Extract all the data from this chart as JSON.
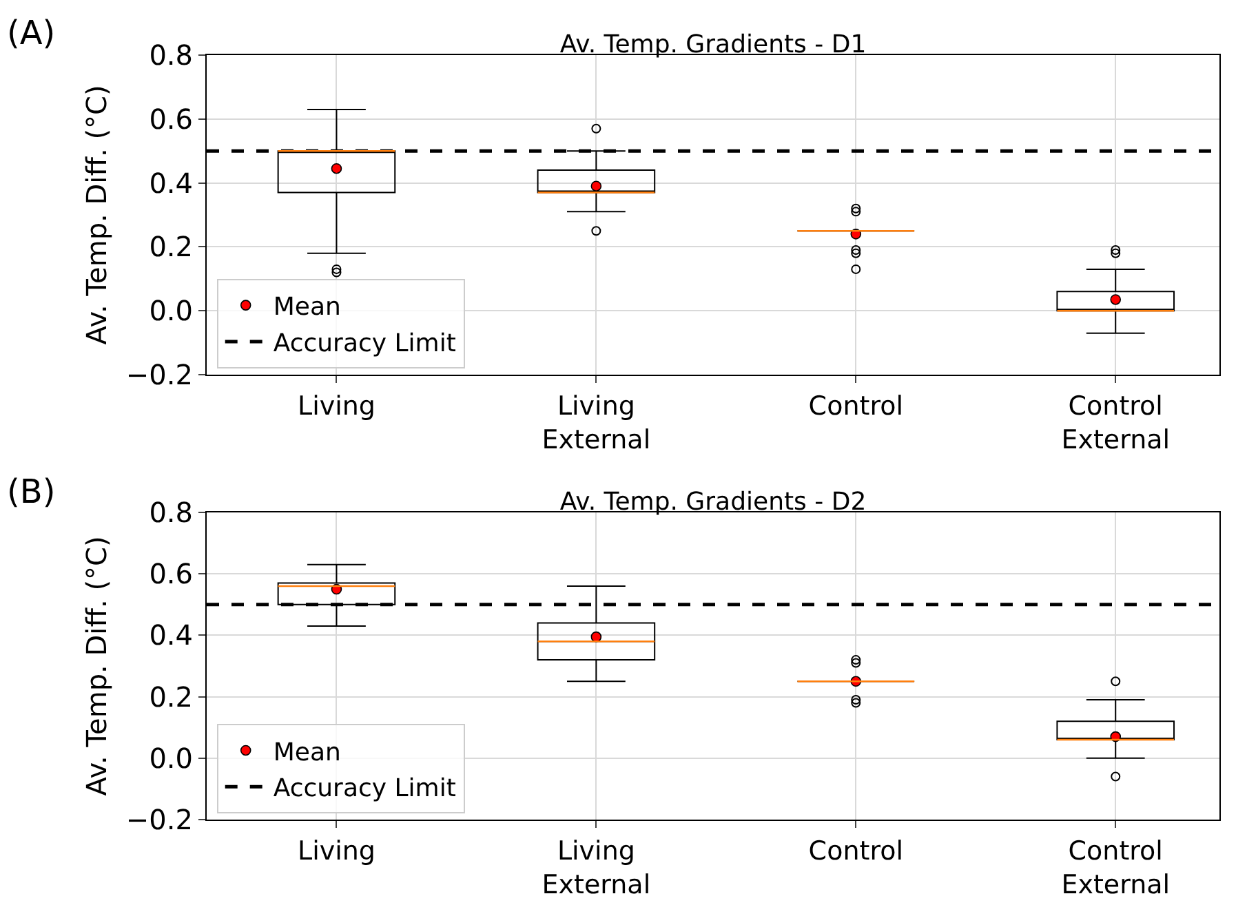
{
  "chart_data": [
    {
      "type": "box",
      "title": "Av. Temp. Gradients - D1",
      "ylabel": "Av. Temp. Diff. (°C)",
      "annotations": [
        "(A)"
      ],
      "categories": [
        "Living",
        "Living External",
        "Control",
        "Control External"
      ],
      "ylim": [
        -0.2,
        0.8
      ],
      "yticks": [
        {
          "value": -0.2,
          "label": "−0.2"
        },
        {
          "value": 0,
          "label": "0.0"
        },
        {
          "value": 0.2,
          "label": "0.2"
        },
        {
          "value": 0.4,
          "label": "0.4"
        },
        {
          "value": 0.6,
          "label": "0.6"
        },
        {
          "value": 0.8,
          "label": "0.8"
        }
      ],
      "grid": true,
      "legend": "bottom left",
      "series": [
        {
          "type": "box",
          "color": "#000000",
          "boxes": [
            {
              "low": 0.18,
              "q1": 0.37,
              "median": 0.5,
              "q3": 0.5,
              "high": 0.63,
              "outliers": [
                0.12,
                0.13
              ]
            },
            {
              "low": 0.31,
              "q1": 0.37,
              "median": 0.37,
              "q3": 0.44,
              "high": 0.5,
              "outliers": [
                0.57,
                0.25
              ]
            },
            {
              "low": 0.25,
              "q1": 0.25,
              "median": 0.25,
              "q3": 0.25,
              "high": 0.25,
              "outliers": [
                0.32,
                0.31,
                0.19,
                0.18,
                0.13
              ]
            },
            {
              "low": -0.07,
              "q1": 0,
              "median": 0,
              "q3": 0.06,
              "high": 0.13,
              "outliers": [
                0.19,
                0.18
              ]
            }
          ]
        },
        {
          "type": "scatter",
          "name": "Mean",
          "color": "#ff0000",
          "marker": "circle",
          "x": [
            "Living",
            "Living External",
            "Control",
            "Control External"
          ],
          "values": [
            0.445,
            0.39,
            0.24,
            0.035
          ]
        }
      ],
      "ref_lines": [
        {
          "axis": "y",
          "value": 0.5,
          "label": "Accuracy Limit",
          "color": "#000000",
          "line_style": "dashed"
        }
      ]
    },
    {
      "type": "box",
      "title": "Av. Temp. Gradients - D2",
      "ylabel": "Av. Temp. Diff. (°C)",
      "annotations": [
        "(B)"
      ],
      "categories": [
        "Living",
        "Living External",
        "Control",
        "Control External"
      ],
      "ylim": [
        -0.2,
        0.8
      ],
      "yticks": [
        {
          "value": -0.2,
          "label": "−0.2"
        },
        {
          "value": 0,
          "label": "0.0"
        },
        {
          "value": 0.2,
          "label": "0.2"
        },
        {
          "value": 0.4,
          "label": "0.4"
        },
        {
          "value": 0.6,
          "label": "0.6"
        },
        {
          "value": 0.8,
          "label": "0.8"
        }
      ],
      "grid": true,
      "legend": "bottom left",
      "series": [
        {
          "type": "box",
          "color": "#000000",
          "boxes": [
            {
              "low": 0.43,
              "q1": 0.5,
              "median": 0.56,
              "q3": 0.57,
              "high": 0.63
            },
            {
              "low": 0.25,
              "q1": 0.32,
              "median": 0.38,
              "q3": 0.44,
              "high": 0.56
            },
            {
              "low": 0.25,
              "q1": 0.25,
              "median": 0.25,
              "q3": 0.25,
              "high": 0.25,
              "outliers": [
                0.32,
                0.31,
                0.19,
                0.18
              ]
            },
            {
              "low": 0,
              "q1": 0.06,
              "median": 0.06,
              "q3": 0.12,
              "high": 0.19,
              "outliers": [
                0.25,
                -0.06
              ]
            }
          ]
        },
        {
          "type": "scatter",
          "name": "Mean",
          "color": "#ff0000",
          "marker": "circle",
          "x": [
            "Living",
            "Living External",
            "Control",
            "Control External"
          ],
          "values": [
            0.55,
            0.395,
            0.25,
            0.07
          ]
        }
      ],
      "ref_lines": [
        {
          "axis": "y",
          "value": 0.5,
          "label": "Accuracy Limit",
          "color": "#000000",
          "line_style": "dashed"
        }
      ]
    }
  ]
}
